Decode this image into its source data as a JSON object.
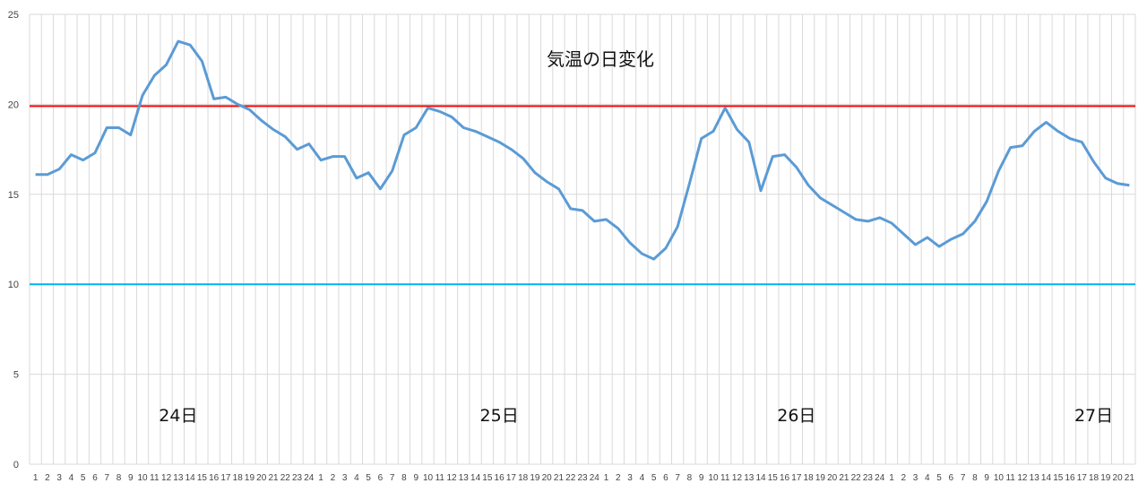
{
  "chart_data": {
    "type": "line",
    "title": "気温の日変化",
    "ylim": [
      0,
      25
    ],
    "yticks": [
      0,
      5,
      10,
      15,
      20,
      25
    ],
    "grid": true,
    "x_labels": [
      1,
      2,
      3,
      4,
      5,
      6,
      7,
      8,
      9,
      10,
      11,
      12,
      13,
      14,
      15,
      16,
      17,
      18,
      19,
      20,
      21,
      22,
      23,
      24,
      1,
      2,
      3,
      4,
      5,
      6,
      7,
      8,
      9,
      10,
      11,
      12,
      13,
      14,
      15,
      16,
      17,
      18,
      19,
      20,
      21,
      22,
      23,
      24,
      1,
      2,
      3,
      4,
      5,
      6,
      7,
      8,
      9,
      10,
      11,
      12,
      13,
      14,
      15,
      16,
      17,
      18,
      19,
      20,
      21,
      22,
      23,
      24,
      1,
      2,
      3,
      4,
      5,
      6,
      7,
      8,
      9,
      10,
      11,
      12,
      13,
      14,
      15,
      16,
      17,
      18,
      19,
      20,
      21
    ],
    "day_labels": [
      {
        "text": "24日",
        "at_index": 12
      },
      {
        "text": "25日",
        "at_index": 39
      },
      {
        "text": "26日",
        "at_index": 64
      },
      {
        "text": "27日",
        "at_index": 89
      }
    ],
    "series": [
      {
        "color": "#5b9bd5",
        "values": [
          16.1,
          16.1,
          16.4,
          17.2,
          16.9,
          17.3,
          18.7,
          18.7,
          18.3,
          20.5,
          21.6,
          22.2,
          23.5,
          23.3,
          22.4,
          20.3,
          20.4,
          20.0,
          19.7,
          19.1,
          18.6,
          18.2,
          17.5,
          17.8,
          16.9,
          17.1,
          17.1,
          15.9,
          16.2,
          15.3,
          16.3,
          18.3,
          18.7,
          19.8,
          19.6,
          19.3,
          18.7,
          18.5,
          18.2,
          17.9,
          17.5,
          17.0,
          16.2,
          15.7,
          15.3,
          14.2,
          14.1,
          13.5,
          13.6,
          13.1,
          12.3,
          11.7,
          11.4,
          12.0,
          13.2,
          15.6,
          18.1,
          18.5,
          19.8,
          18.6,
          17.9,
          15.2,
          17.1,
          17.2,
          16.5,
          15.5,
          14.8,
          14.4,
          14.0,
          13.6,
          13.5,
          13.7,
          13.4,
          12.8,
          12.2,
          12.6,
          12.1,
          12.5,
          12.8,
          13.5,
          14.6,
          16.3,
          17.6,
          17.7,
          18.5,
          19.0,
          18.5,
          18.1,
          17.9,
          16.8,
          15.9,
          15.6,
          15.5
        ]
      },
      {
        "color": "#ff0000",
        "values": [
          19.9,
          19.9
        ]
      },
      {
        "color": "#00b0f0",
        "values": [
          10.0,
          10.0
        ]
      }
    ]
  }
}
